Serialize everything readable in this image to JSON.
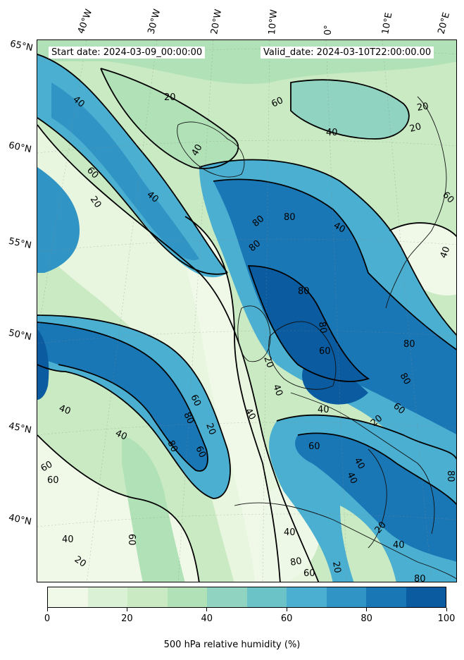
{
  "header": {
    "start_date": "Start date: 2024-03-09_00:00:00",
    "valid_date": "Valid_date: 2024-03-10T22:00:00.00"
  },
  "longitude_labels": [
    "40°W",
    "30°W",
    "20°W",
    "10°W",
    "0°",
    "10°E",
    "20°E"
  ],
  "latitude_labels": [
    "65°N",
    "60°N",
    "55°N",
    "50°N",
    "45°N",
    "40°N"
  ],
  "contour_labels": [
    "20",
    "40",
    "60",
    "80"
  ],
  "colorbar": {
    "label": "500 hPa relative humidity (%)",
    "ticks": [
      "0",
      "20",
      "40",
      "60",
      "80",
      "100"
    ],
    "levels": [
      0,
      10,
      20,
      30,
      40,
      50,
      60,
      70,
      80,
      90,
      100
    ],
    "colors": [
      "#f0f9e8",
      "#dbf1d6",
      "#c9eac2",
      "#b1e1b6",
      "#8fd3c0",
      "#6bc3c8",
      "#4aafd1",
      "#3094c4",
      "#1a77b6",
      "#0a5ba0"
    ],
    "colormap": "GnBu"
  }
}
